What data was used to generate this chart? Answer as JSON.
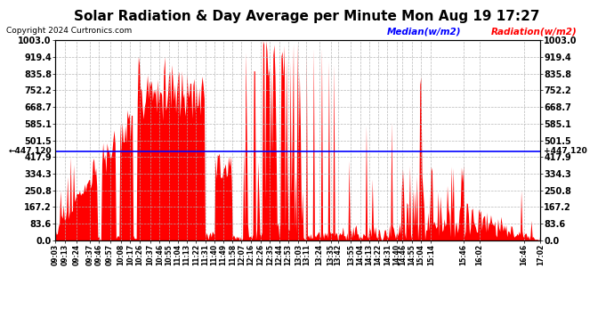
{
  "title": "Solar Radiation & Day Average per Minute Mon Aug 19 17:27",
  "copyright": "Copyright 2024 Curtronics.com",
  "median_label": "Median(w/m2)",
  "radiation_label": "Radiation(w/m2)",
  "median_value": 447.12,
  "ylim": [
    0,
    1003.0
  ],
  "ytick_values": [
    0.0,
    83.6,
    167.2,
    250.8,
    334.3,
    417.9,
    501.5,
    585.1,
    668.7,
    752.2,
    835.8,
    919.4,
    1003.0
  ],
  "ytick_labels": [
    "0.0",
    "83.6",
    "167.2",
    "250.8",
    "334.3",
    "417.9",
    "501.5",
    "585.1",
    "668.7",
    "752.2",
    "835.8",
    "919.4",
    "1003.0"
  ],
  "background_color": "#ffffff",
  "radiation_color": "#ff0000",
  "median_color": "#0000ff",
  "grid_color": "#b0b0b0",
  "title_color": "#000000",
  "title_fontsize": 11,
  "left_median_label": "←447.120",
  "right_median_label": "+447.120",
  "x_tick_labels": [
    "09:03",
    "09:13",
    "09:24",
    "09:37",
    "09:46",
    "09:57",
    "10:08",
    "10:17",
    "10:26",
    "10:37",
    "10:46",
    "10:55",
    "11:04",
    "11:13",
    "11:22",
    "11:31",
    "11:40",
    "11:49",
    "11:58",
    "12:07",
    "12:16",
    "12:26",
    "12:35",
    "12:44",
    "12:53",
    "13:03",
    "13:11",
    "13:24",
    "13:35",
    "13:42",
    "13:55",
    "14:04",
    "14:13",
    "14:22",
    "14:31",
    "14:40",
    "14:46",
    "14:55",
    "15:04",
    "15:14",
    "15:46",
    "16:02",
    "16:46",
    "17:02"
  ],
  "x_tick_minutes": [
    0,
    10,
    21,
    34,
    43,
    54,
    65,
    74,
    83,
    94,
    103,
    112,
    121,
    130,
    139,
    148,
    157,
    166,
    175,
    184,
    193,
    203,
    212,
    221,
    230,
    240,
    248,
    261,
    272,
    279,
    292,
    301,
    310,
    319,
    328,
    337,
    343,
    352,
    361,
    371,
    403,
    419,
    463,
    479
  ]
}
